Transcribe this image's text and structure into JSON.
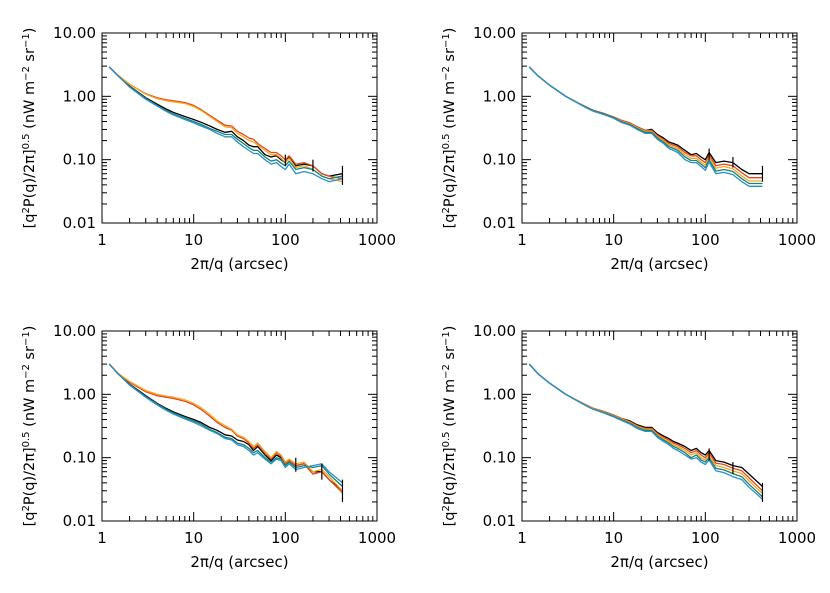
{
  "chart_data": [
    {
      "type": "line",
      "xlabel": "2π/q (arcsec)",
      "ylabel": {
        "prefix": "[q",
        "sup1": "2",
        "mid": "P(q)/2π]",
        "sup2": "0.5",
        "units": " (nW m",
        "sup3": "−2",
        "units2": " sr",
        "sup4": "−1",
        "close": ")"
      },
      "xscale": "log",
      "yscale": "log",
      "xlim": [
        1,
        1000
      ],
      "ylim": [
        0.01,
        10
      ],
      "xticks": [
        "1",
        "10",
        "100",
        "1000"
      ],
      "yticks": [
        "0.01",
        "0.10",
        "1.00",
        "10.00"
      ],
      "x": [
        1.2,
        1.5,
        2,
        3,
        4,
        5,
        6,
        8,
        10,
        12,
        15,
        18,
        22,
        26,
        30,
        35,
        40,
        45,
        50,
        60,
        70,
        80,
        90,
        100,
        110,
        130,
        160,
        200,
        250,
        300,
        420
      ],
      "series": [
        {
          "color": "#000000",
          "values": [
            2.9,
            2.1,
            1.45,
            0.95,
            0.75,
            0.63,
            0.56,
            0.48,
            0.43,
            0.39,
            0.34,
            0.3,
            0.27,
            0.28,
            0.23,
            0.2,
            0.17,
            0.16,
            0.16,
            0.12,
            0.11,
            0.115,
            0.1,
            0.09,
            0.11,
            0.08,
            0.085,
            0.08,
            0.06,
            0.055,
            0.06
          ]
        },
        {
          "color": "#e34a1a",
          "values": [
            2.9,
            2.15,
            1.55,
            1.1,
            0.95,
            0.88,
            0.85,
            0.8,
            0.72,
            0.62,
            0.5,
            0.42,
            0.35,
            0.34,
            0.28,
            0.25,
            0.22,
            0.21,
            0.18,
            0.15,
            0.13,
            0.13,
            0.115,
            0.1,
            0.115,
            0.085,
            0.09,
            0.08,
            0.06,
            0.055,
            0.05
          ]
        },
        {
          "color": "#f5a623",
          "values": [
            2.9,
            2.15,
            1.55,
            1.08,
            0.92,
            0.85,
            0.82,
            0.77,
            0.69,
            0.6,
            0.48,
            0.4,
            0.33,
            0.32,
            0.26,
            0.23,
            0.2,
            0.19,
            0.17,
            0.14,
            0.12,
            0.12,
            0.105,
            0.09,
            0.105,
            0.075,
            0.08,
            0.07,
            0.055,
            0.05,
            0.045
          ]
        },
        {
          "color": "#14837a",
          "values": [
            2.9,
            2.1,
            1.42,
            0.93,
            0.72,
            0.6,
            0.53,
            0.45,
            0.4,
            0.36,
            0.31,
            0.28,
            0.25,
            0.25,
            0.21,
            0.18,
            0.155,
            0.14,
            0.14,
            0.11,
            0.095,
            0.1,
            0.088,
            0.08,
            0.095,
            0.07,
            0.075,
            0.07,
            0.055,
            0.05,
            0.055
          ]
        },
        {
          "color": "#2b8fc7",
          "values": [
            2.9,
            2.1,
            1.4,
            0.9,
            0.7,
            0.58,
            0.51,
            0.43,
            0.38,
            0.34,
            0.3,
            0.26,
            0.23,
            0.23,
            0.19,
            0.16,
            0.14,
            0.125,
            0.125,
            0.1,
            0.085,
            0.09,
            0.078,
            0.07,
            0.085,
            0.06,
            0.065,
            0.06,
            0.05,
            0.045,
            0.05
          ]
        }
      ],
      "error_bars": {
        "x": [
          100,
          200,
          420
        ],
        "lo": [
          0.08,
          0.065,
          0.04
        ],
        "hi": [
          0.12,
          0.1,
          0.08
        ]
      }
    },
    {
      "type": "line",
      "xlabel": "2π/q (arcsec)",
      "ylabel": {
        "prefix": "[q",
        "sup1": "2",
        "mid": "P(q)/2π]",
        "sup2": "0.5",
        "units": " (nW m",
        "sup3": "−2",
        "units2": " sr",
        "sup4": "−1",
        "close": ")"
      },
      "xscale": "log",
      "yscale": "log",
      "xlim": [
        1,
        1000
      ],
      "ylim": [
        0.01,
        10
      ],
      "xticks": [
        "1",
        "10",
        "100",
        "1000"
      ],
      "yticks": [
        "0.01",
        "0.10",
        "1.00",
        "10.00"
      ],
      "x": [
        1.2,
        1.5,
        2,
        3,
        4,
        5,
        6,
        8,
        10,
        12,
        15,
        18,
        22,
        26,
        30,
        35,
        40,
        45,
        50,
        60,
        70,
        80,
        90,
        100,
        110,
        130,
        160,
        200,
        250,
        300,
        420
      ],
      "series": [
        {
          "color": "#000000",
          "values": [
            2.9,
            2.1,
            1.5,
            1.0,
            0.8,
            0.68,
            0.6,
            0.53,
            0.47,
            0.42,
            0.38,
            0.33,
            0.29,
            0.3,
            0.25,
            0.22,
            0.19,
            0.18,
            0.17,
            0.14,
            0.12,
            0.125,
            0.11,
            0.1,
            0.13,
            0.09,
            0.095,
            0.09,
            0.07,
            0.06,
            0.06
          ]
        },
        {
          "color": "#e34a1a",
          "values": [
            2.9,
            2.1,
            1.5,
            1.0,
            0.8,
            0.68,
            0.6,
            0.53,
            0.47,
            0.42,
            0.38,
            0.33,
            0.29,
            0.29,
            0.24,
            0.21,
            0.18,
            0.17,
            0.16,
            0.13,
            0.115,
            0.115,
            0.1,
            0.09,
            0.12,
            0.08,
            0.085,
            0.08,
            0.062,
            0.052,
            0.052
          ]
        },
        {
          "color": "#f5a623",
          "values": [
            2.9,
            2.1,
            1.5,
            1.0,
            0.8,
            0.67,
            0.59,
            0.52,
            0.46,
            0.41,
            0.37,
            0.32,
            0.28,
            0.28,
            0.23,
            0.2,
            0.17,
            0.16,
            0.15,
            0.12,
            0.105,
            0.105,
            0.092,
            0.082,
            0.11,
            0.073,
            0.078,
            0.072,
            0.055,
            0.046,
            0.046
          ]
        },
        {
          "color": "#14837a",
          "values": [
            2.9,
            2.1,
            1.5,
            1.0,
            0.79,
            0.67,
            0.59,
            0.52,
            0.46,
            0.4,
            0.36,
            0.31,
            0.27,
            0.27,
            0.22,
            0.19,
            0.16,
            0.15,
            0.14,
            0.11,
            0.097,
            0.097,
            0.085,
            0.075,
            0.1,
            0.066,
            0.07,
            0.065,
            0.05,
            0.042,
            0.042
          ]
        },
        {
          "color": "#2b8fc7",
          "values": [
            2.9,
            2.1,
            1.5,
            1.0,
            0.79,
            0.66,
            0.58,
            0.51,
            0.45,
            0.39,
            0.35,
            0.3,
            0.26,
            0.26,
            0.21,
            0.18,
            0.15,
            0.14,
            0.13,
            0.1,
            0.09,
            0.09,
            0.078,
            0.068,
            0.092,
            0.06,
            0.063,
            0.058,
            0.045,
            0.038,
            0.038
          ]
        }
      ],
      "error_bars": {
        "x": [
          110,
          200,
          420
        ],
        "lo": [
          0.1,
          0.075,
          0.045
        ],
        "hi": [
          0.15,
          0.11,
          0.08
        ]
      }
    },
    {
      "type": "line",
      "xlabel": "2π/q (arcsec)",
      "ylabel": {
        "prefix": "[q",
        "sup1": "2",
        "mid": "P(q)/2π]",
        "sup2": "0.5",
        "units": " (nW m",
        "sup3": "−2",
        "units2": " sr",
        "sup4": "−1",
        "close": ")"
      },
      "xscale": "log",
      "yscale": "log",
      "xlim": [
        1,
        1000
      ],
      "ylim": [
        0.01,
        10
      ],
      "xticks": [
        "1",
        "10",
        "100",
        "1000"
      ],
      "yticks": [
        "0.01",
        "0.10",
        "1.00",
        "10.00"
      ],
      "x": [
        1.2,
        1.5,
        2,
        3,
        4,
        5,
        6,
        8,
        10,
        12,
        15,
        18,
        22,
        26,
        30,
        35,
        40,
        45,
        50,
        60,
        70,
        80,
        90,
        100,
        110,
        130,
        160,
        200,
        250,
        300,
        420
      ],
      "series": [
        {
          "color": "#000000",
          "values": [
            3.0,
            2.1,
            1.45,
            0.95,
            0.72,
            0.6,
            0.53,
            0.45,
            0.4,
            0.36,
            0.3,
            0.27,
            0.23,
            0.22,
            0.19,
            0.18,
            0.16,
            0.13,
            0.15,
            0.11,
            0.09,
            0.11,
            0.1,
            0.08,
            0.09,
            0.075,
            0.08,
            0.06,
            0.06,
            0.045,
            0.03
          ]
        },
        {
          "color": "#e34a1a",
          "values": [
            3.0,
            2.15,
            1.55,
            1.1,
            0.95,
            0.9,
            0.86,
            0.78,
            0.68,
            0.58,
            0.45,
            0.36,
            0.3,
            0.27,
            0.22,
            0.2,
            0.17,
            0.14,
            0.16,
            0.12,
            0.095,
            0.12,
            0.105,
            0.08,
            0.09,
            0.075,
            0.08,
            0.055,
            0.06,
            0.045,
            0.028
          ]
        },
        {
          "color": "#f5a623",
          "values": [
            3.0,
            2.15,
            1.6,
            1.15,
            1.0,
            0.94,
            0.9,
            0.82,
            0.72,
            0.62,
            0.48,
            0.38,
            0.32,
            0.28,
            0.23,
            0.21,
            0.18,
            0.15,
            0.17,
            0.125,
            0.1,
            0.125,
            0.11,
            0.085,
            0.095,
            0.08,
            0.085,
            0.06,
            0.065,
            0.05,
            0.03
          ]
        },
        {
          "color": "#14837a",
          "values": [
            3.0,
            2.1,
            1.42,
            0.92,
            0.7,
            0.58,
            0.51,
            0.43,
            0.38,
            0.34,
            0.28,
            0.25,
            0.21,
            0.2,
            0.17,
            0.16,
            0.14,
            0.12,
            0.13,
            0.1,
            0.085,
            0.1,
            0.095,
            0.075,
            0.085,
            0.07,
            0.075,
            0.07,
            0.075,
            0.055,
            0.035
          ]
        },
        {
          "color": "#2b8fc7",
          "values": [
            3.0,
            2.1,
            1.4,
            0.9,
            0.68,
            0.56,
            0.49,
            0.41,
            0.36,
            0.32,
            0.27,
            0.24,
            0.2,
            0.19,
            0.16,
            0.15,
            0.13,
            0.11,
            0.12,
            0.095,
            0.08,
            0.095,
            0.09,
            0.07,
            0.08,
            0.065,
            0.07,
            0.075,
            0.08,
            0.06,
            0.04
          ]
        }
      ],
      "error_bars": {
        "x": [
          130,
          250,
          420
        ],
        "lo": [
          0.06,
          0.045,
          0.02
        ],
        "hi": [
          0.1,
          0.08,
          0.045
        ]
      }
    },
    {
      "type": "line",
      "xlabel": "2π/q (arcsec)",
      "ylabel": {
        "prefix": "[q",
        "sup1": "2",
        "mid": "P(q)/2π]",
        "sup2": "0.5",
        "units": " (nW m",
        "sup3": "−2",
        "units2": " sr",
        "sup4": "−1",
        "close": ")"
      },
      "xscale": "log",
      "yscale": "log",
      "xlim": [
        1,
        1000
      ],
      "ylim": [
        0.01,
        10
      ],
      "xticks": [
        "1",
        "10",
        "100",
        "1000"
      ],
      "yticks": [
        "0.01",
        "0.10",
        "1.00",
        "10.00"
      ],
      "x": [
        1.2,
        1.5,
        2,
        3,
        4,
        5,
        6,
        8,
        10,
        12,
        15,
        18,
        22,
        26,
        30,
        35,
        40,
        45,
        50,
        60,
        70,
        80,
        90,
        100,
        110,
        130,
        160,
        200,
        250,
        300,
        420
      ],
      "series": [
        {
          "color": "#000000",
          "values": [
            3.0,
            2.1,
            1.5,
            1.0,
            0.8,
            0.68,
            0.6,
            0.53,
            0.47,
            0.42,
            0.38,
            0.33,
            0.3,
            0.3,
            0.25,
            0.22,
            0.2,
            0.18,
            0.17,
            0.15,
            0.13,
            0.14,
            0.12,
            0.11,
            0.13,
            0.09,
            0.085,
            0.075,
            0.07,
            0.055,
            0.035
          ]
        },
        {
          "color": "#e34a1a",
          "values": [
            3.0,
            2.1,
            1.5,
            1.0,
            0.8,
            0.68,
            0.6,
            0.53,
            0.47,
            0.42,
            0.37,
            0.32,
            0.29,
            0.29,
            0.24,
            0.21,
            0.19,
            0.17,
            0.16,
            0.14,
            0.12,
            0.13,
            0.11,
            0.1,
            0.12,
            0.082,
            0.078,
            0.068,
            0.062,
            0.048,
            0.03
          ]
        },
        {
          "color": "#f5a623",
          "values": [
            3.0,
            2.1,
            1.5,
            1.0,
            0.8,
            0.67,
            0.59,
            0.52,
            0.46,
            0.41,
            0.36,
            0.31,
            0.28,
            0.28,
            0.23,
            0.2,
            0.18,
            0.16,
            0.15,
            0.13,
            0.11,
            0.12,
            0.1,
            0.092,
            0.11,
            0.075,
            0.07,
            0.062,
            0.056,
            0.043,
            0.027
          ]
        },
        {
          "color": "#14837a",
          "values": [
            3.0,
            2.1,
            1.5,
            1.0,
            0.79,
            0.66,
            0.58,
            0.51,
            0.45,
            0.4,
            0.35,
            0.3,
            0.27,
            0.27,
            0.22,
            0.19,
            0.17,
            0.15,
            0.14,
            0.12,
            0.1,
            0.11,
            0.092,
            0.085,
            0.1,
            0.068,
            0.064,
            0.056,
            0.05,
            0.038,
            0.024
          ]
        },
        {
          "color": "#2b8fc7",
          "values": [
            3.0,
            2.1,
            1.5,
            1.0,
            0.79,
            0.66,
            0.58,
            0.5,
            0.44,
            0.39,
            0.34,
            0.29,
            0.26,
            0.26,
            0.21,
            0.18,
            0.16,
            0.14,
            0.13,
            0.11,
            0.095,
            0.1,
            0.085,
            0.078,
            0.092,
            0.062,
            0.058,
            0.05,
            0.045,
            0.034,
            0.022
          ]
        }
      ],
      "error_bars": {
        "x": [
          110,
          200,
          420
        ],
        "lo": [
          0.09,
          0.055,
          0.02
        ],
        "hi": [
          0.14,
          0.085,
          0.04
        ]
      }
    }
  ]
}
